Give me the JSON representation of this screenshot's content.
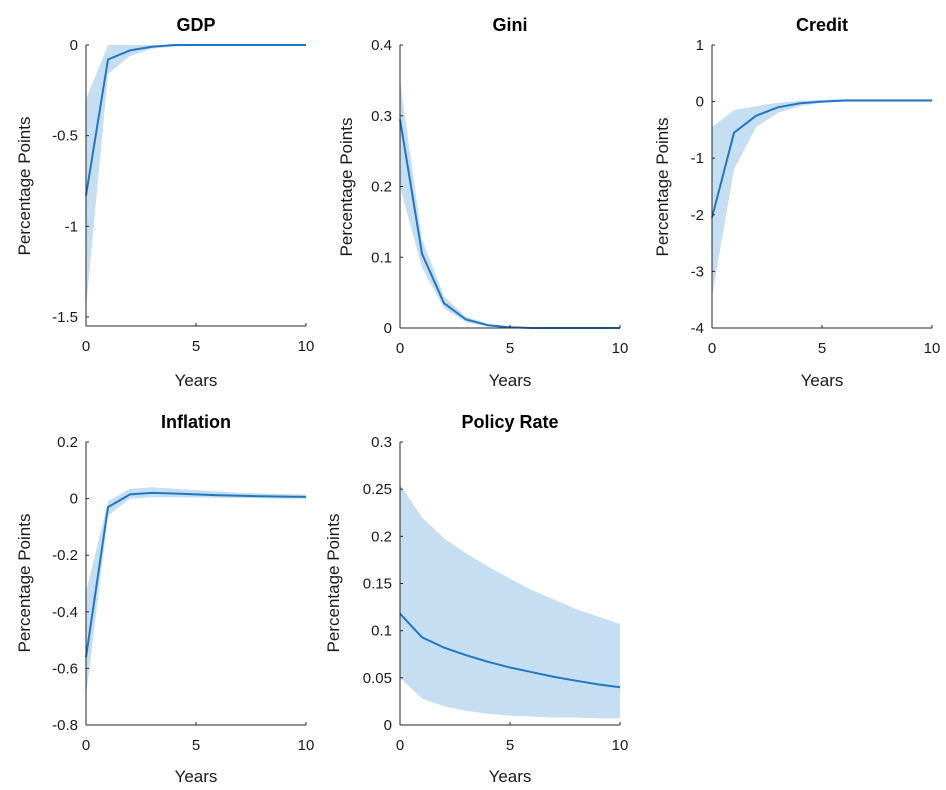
{
  "chart_data": [
    {
      "type": "line",
      "title": "GDP",
      "xlabel": "Years",
      "ylabel": "Percentage Points",
      "xlim": [
        0,
        10
      ],
      "ylim": [
        -1.55,
        0
      ],
      "xticks": [
        0,
        5,
        10
      ],
      "yticks": [
        0,
        -0.5,
        -1,
        -1.5
      ],
      "ytick_labels": [
        "0",
        "-0.5",
        "-1",
        "-1.5"
      ],
      "x": [
        0,
        1,
        2,
        3,
        4,
        5,
        6,
        7,
        8,
        9,
        10
      ],
      "series": [
        {
          "values": [
            -0.83,
            -0.08,
            -0.03,
            -0.01,
            0.0,
            0.0,
            0.0,
            0.0,
            0.0,
            0.0,
            0.0
          ],
          "lower": [
            -1.45,
            -0.16,
            -0.06,
            -0.02,
            -0.01,
            0.0,
            0.0,
            0.0,
            0.0,
            0.0,
            0.0
          ],
          "upper": [
            -0.3,
            0.0,
            0.0,
            0.0,
            0.0,
            0.0,
            0.0,
            0.0,
            0.0,
            0.0,
            0.0
          ]
        }
      ]
    },
    {
      "type": "line",
      "title": "Gini",
      "xlabel": "Years",
      "ylabel": "Percentage Points",
      "xlim": [
        0,
        10
      ],
      "ylim": [
        0,
        0.4
      ],
      "xticks": [
        0,
        5,
        10
      ],
      "yticks": [
        0,
        0.1,
        0.2,
        0.3,
        0.4
      ],
      "ytick_labels": [
        "0",
        "0.1",
        "0.2",
        "0.3",
        "0.4"
      ],
      "x": [
        0,
        1,
        2,
        3,
        4,
        5,
        6,
        7,
        8,
        9,
        10
      ],
      "series": [
        {
          "values": [
            0.295,
            0.105,
            0.035,
            0.012,
            0.004,
            0.001,
            0.0,
            0.0,
            0.0,
            0.0,
            0.0
          ],
          "lower": [
            0.2,
            0.085,
            0.028,
            0.008,
            0.002,
            0.0,
            0.0,
            0.0,
            0.0,
            0.0,
            0.0
          ],
          "upper": [
            0.35,
            0.125,
            0.045,
            0.016,
            0.006,
            0.002,
            0.001,
            0.0,
            0.0,
            0.0,
            0.0
          ]
        }
      ]
    },
    {
      "type": "line",
      "title": "Credit",
      "xlabel": "Years",
      "ylabel": "Percentage Points",
      "xlim": [
        0,
        10
      ],
      "ylim": [
        -4,
        1
      ],
      "xticks": [
        0,
        5,
        10
      ],
      "yticks": [
        1,
        0,
        -1,
        -2,
        -3,
        -4
      ],
      "ytick_labels": [
        "1",
        "0",
        "-1",
        "-2",
        "-3",
        "-4"
      ],
      "x": [
        0,
        1,
        2,
        3,
        4,
        5,
        6,
        7,
        8,
        9,
        10
      ],
      "series": [
        {
          "values": [
            -2.05,
            -0.55,
            -0.25,
            -0.1,
            -0.03,
            0.0,
            0.02,
            0.02,
            0.02,
            0.02,
            0.02
          ],
          "lower": [
            -3.45,
            -1.2,
            -0.45,
            -0.2,
            -0.08,
            -0.02,
            0.0,
            0.0,
            0.0,
            0.0,
            0.0
          ],
          "upper": [
            -0.45,
            -0.15,
            -0.08,
            -0.02,
            0.01,
            0.03,
            0.04,
            0.04,
            0.04,
            0.04,
            0.04
          ]
        }
      ]
    },
    {
      "type": "line",
      "title": "Inflation",
      "xlabel": "Years",
      "ylabel": "Percentage Points",
      "xlim": [
        0,
        10
      ],
      "ylim": [
        -0.8,
        0.2
      ],
      "xticks": [
        0,
        5,
        10
      ],
      "yticks": [
        0.2,
        0,
        -0.2,
        -0.4,
        -0.6,
        -0.8
      ],
      "ytick_labels": [
        "0.2",
        "0",
        "-0.2",
        "-0.4",
        "-0.6",
        "-0.8"
      ],
      "x": [
        0,
        1,
        2,
        3,
        4,
        5,
        6,
        7,
        8,
        9,
        10
      ],
      "series": [
        {
          "values": [
            -0.56,
            -0.03,
            0.015,
            0.02,
            0.018,
            0.015,
            0.012,
            0.01,
            0.008,
            0.007,
            0.006
          ],
          "lower": [
            -0.7,
            -0.06,
            0.0,
            0.005,
            0.005,
            0.004,
            0.003,
            0.002,
            0.001,
            0.0,
            0.0
          ],
          "upper": [
            -0.33,
            -0.01,
            0.035,
            0.04,
            0.035,
            0.03,
            0.025,
            0.02,
            0.018,
            0.016,
            0.014
          ]
        }
      ]
    },
    {
      "type": "line",
      "title": "Policy Rate",
      "xlabel": "Years",
      "ylabel": "Percentage Points",
      "xlim": [
        0,
        10
      ],
      "ylim": [
        0,
        0.3
      ],
      "xticks": [
        0,
        5,
        10
      ],
      "yticks": [
        0,
        0.05,
        0.1,
        0.15,
        0.2,
        0.25,
        0.3
      ],
      "ytick_labels": [
        "0",
        "0.05",
        "0.1",
        "0.15",
        "0.2",
        "0.25",
        "0.3"
      ],
      "x": [
        0,
        1,
        2,
        3,
        4,
        5,
        6,
        7,
        8,
        9,
        10
      ],
      "series": [
        {
          "values": [
            0.118,
            0.093,
            0.082,
            0.074,
            0.067,
            0.061,
            0.056,
            0.051,
            0.047,
            0.043,
            0.04
          ],
          "lower": [
            0.05,
            0.028,
            0.02,
            0.015,
            0.012,
            0.01,
            0.009,
            0.008,
            0.008,
            0.007,
            0.007
          ],
          "upper": [
            0.255,
            0.22,
            0.198,
            0.182,
            0.168,
            0.155,
            0.143,
            0.133,
            0.123,
            0.115,
            0.107
          ]
        }
      ]
    }
  ]
}
